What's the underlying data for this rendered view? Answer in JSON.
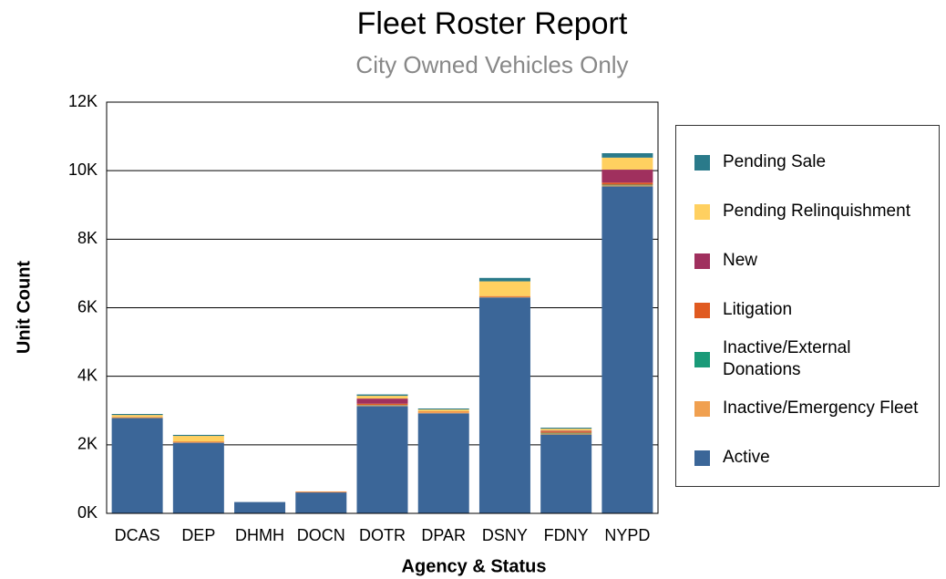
{
  "chart_data": {
    "type": "stacked_bar",
    "title": "Fleet Roster Report",
    "subtitle": "City Owned Vehicles Only",
    "x_label": "Agency & Status",
    "y_label": "Unit Count",
    "categories": [
      "DCAS",
      "DEP",
      "DHMH",
      "DOCN",
      "DOTR",
      "DPAR",
      "DSNY",
      "FDNY",
      "NYPD"
    ],
    "series": [
      {
        "name": "Active",
        "color": "#3b6698",
        "values": [
          2780,
          2060,
          330,
          610,
          3130,
          2920,
          6300,
          2300,
          9540
        ]
      },
      {
        "name": "Inactive/Emergency Fleet",
        "color": "#f0a050",
        "values": [
          20,
          10,
          0,
          0,
          20,
          30,
          20,
          30,
          30
        ]
      },
      {
        "name": "Inactive/External Donations",
        "color": "#1a9a78",
        "values": [
          0,
          0,
          0,
          0,
          10,
          0,
          0,
          20,
          20
        ]
      },
      {
        "name": "Litigation",
        "color": "#e05a20",
        "values": [
          10,
          20,
          0,
          20,
          40,
          20,
          20,
          40,
          60
        ]
      },
      {
        "name": "New",
        "color": "#a0305e",
        "values": [
          0,
          0,
          0,
          0,
          150,
          0,
          0,
          20,
          380
        ]
      },
      {
        "name": "Pending Relinquishment",
        "color": "#ffd060",
        "values": [
          60,
          170,
          0,
          10,
          80,
          60,
          430,
          60,
          350
        ]
      },
      {
        "name": "Pending Sale",
        "color": "#2a7a8a",
        "values": [
          30,
          30,
          0,
          0,
          40,
          30,
          100,
          30,
          130
        ]
      }
    ],
    "ylim": [
      0,
      12000
    ],
    "yticks": [
      {
        "value": 0,
        "label": "0K"
      },
      {
        "value": 2000,
        "label": "2K"
      },
      {
        "value": 4000,
        "label": "4K"
      },
      {
        "value": 6000,
        "label": "6K"
      },
      {
        "value": 8000,
        "label": "8K"
      },
      {
        "value": 10000,
        "label": "10K"
      },
      {
        "value": 12000,
        "label": "12K"
      }
    ],
    "grid": true,
    "legend": "right"
  }
}
